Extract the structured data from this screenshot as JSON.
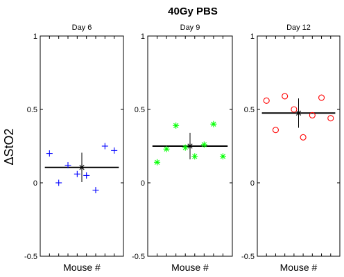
{
  "figure": {
    "title": "40Gy PBS",
    "ylabel": "ΔStO2"
  },
  "chart_data": [
    {
      "type": "scatter",
      "title": "Day 6",
      "xlabel": "Mouse #",
      "ylabel": "ΔStO2",
      "ylim": [
        -0.5,
        1
      ],
      "yticks": [
        -0.5,
        0,
        0.5,
        1
      ],
      "ytick_labels": [
        "-0.5",
        "0",
        "0.5",
        "1"
      ],
      "xlim": [
        0,
        9
      ],
      "grid": false,
      "marker": "plus",
      "color": "#0000ff",
      "x": [
        1,
        2,
        3,
        4,
        5,
        6,
        7,
        8
      ],
      "y": [
        0.2,
        0.0,
        0.12,
        0.06,
        0.05,
        -0.05,
        0.25,
        0.22
      ],
      "mean": 0.105,
      "error": 0.1
    },
    {
      "type": "scatter",
      "title": "Day 9",
      "xlabel": "Mouse #",
      "ylabel": "ΔStO2",
      "ylim": [
        -0.5,
        1
      ],
      "yticks": [
        -0.5,
        0,
        0.5,
        1
      ],
      "ytick_labels": [
        "-0.5",
        "0",
        "0.5",
        "1"
      ],
      "xlim": [
        0,
        9
      ],
      "grid": false,
      "marker": "asterisk",
      "color": "#00ff00",
      "x": [
        1,
        2,
        3,
        4,
        5,
        6,
        7,
        8
      ],
      "y": [
        0.14,
        0.23,
        0.39,
        0.24,
        0.18,
        0.26,
        0.4,
        0.18
      ],
      "mean": 0.25,
      "error": 0.09
    },
    {
      "type": "scatter",
      "title": "Day 12",
      "xlabel": "Mouse #",
      "ylabel": "ΔStO2",
      "ylim": [
        -0.5,
        1
      ],
      "yticks": [
        -0.5,
        0,
        0.5,
        1
      ],
      "ytick_labels": [
        "-0.5",
        "0",
        "0.5",
        "1"
      ],
      "xlim": [
        0,
        9
      ],
      "grid": false,
      "marker": "circle",
      "color": "#ff0000",
      "x": [
        1,
        2,
        3,
        4,
        5,
        6,
        7,
        8
      ],
      "y": [
        0.56,
        0.36,
        0.59,
        0.5,
        0.31,
        0.46,
        0.58,
        0.44
      ],
      "mean": 0.475,
      "error": 0.1
    }
  ]
}
